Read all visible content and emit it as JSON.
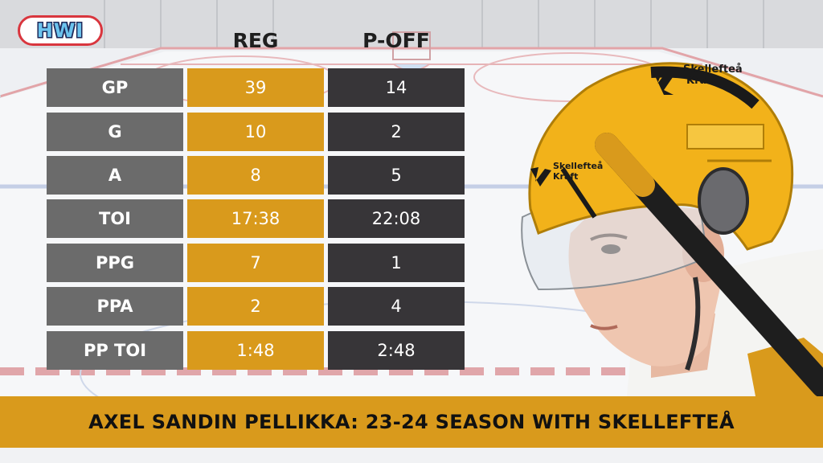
{
  "logo": {
    "text": "HWI"
  },
  "columns": {
    "reg": "REG",
    "poff": "P-OFF"
  },
  "stats": [
    {
      "label": "GP",
      "reg": "39",
      "poff": "14"
    },
    {
      "label": "G",
      "reg": "10",
      "poff": "2"
    },
    {
      "label": "A",
      "reg": "8",
      "poff": "5"
    },
    {
      "label": "TOI",
      "reg": "17:38",
      "poff": "22:08"
    },
    {
      "label": "PPG",
      "reg": "7",
      "poff": "1"
    },
    {
      "label": "PPA",
      "reg": "2",
      "poff": "4"
    },
    {
      "label": "PP TOI",
      "reg": "1:48",
      "poff": "2:48"
    }
  ],
  "helmet": {
    "brand_line1": "Skellefteå",
    "brand_line2": "Kraft"
  },
  "banner": {
    "title": "AXEL SANDIN PELLIKKA: 23-24 SEASON WITH SKELLEFTEÅ"
  },
  "colors": {
    "gold": "#d99a1c",
    "gray": "#6b6b6b",
    "dark": "#373538"
  }
}
